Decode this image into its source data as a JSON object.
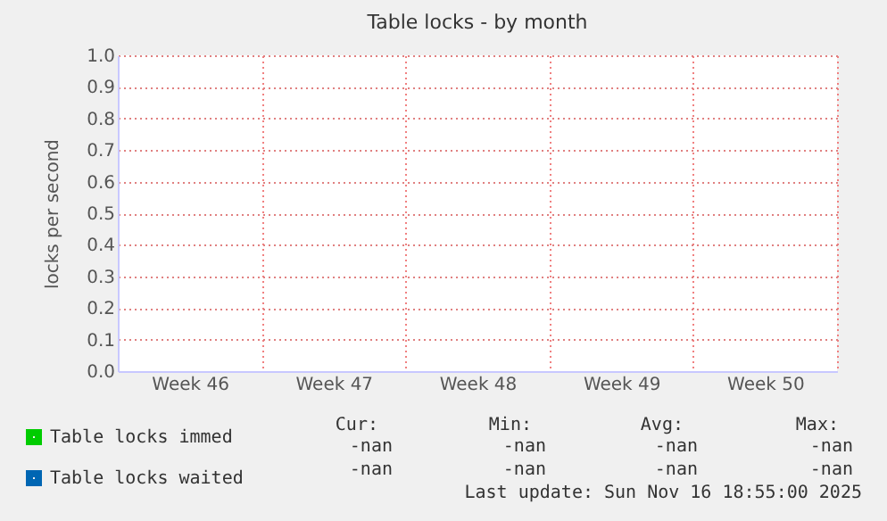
{
  "chart_data": {
    "type": "line",
    "title": "Table locks - by month",
    "ylabel": "locks per second",
    "categories": [
      "Week 46",
      "Week 47",
      "Week 48",
      "Week 49",
      "Week 50"
    ],
    "series": [
      {
        "name": "Table locks immed",
        "color": "#00cc00",
        "values": [
          null,
          null,
          null,
          null,
          null
        ]
      },
      {
        "name": "Table locks waited",
        "color": "#0066b3",
        "values": [
          null,
          null,
          null,
          null,
          null
        ]
      }
    ],
    "ylim": [
      0,
      1
    ],
    "yticks": [
      {
        "value": 0,
        "label": "0.0"
      },
      0.1,
      0.2,
      0.3,
      0.4,
      0.5,
      0.6,
      0.7,
      0.8,
      0.9,
      {
        "value": 1,
        "label": "1.0"
      }
    ],
    "grid": true,
    "legend": "bottom left",
    "annotations": [
      "Cur:",
      "Min:",
      "Avg:",
      "Max:",
      "-nan",
      "-nan",
      "-nan",
      "-nan",
      "-nan",
      "-nan",
      "-nan",
      "-nan",
      "Last update:  Sun Nov 16 18:55:00 2025"
    ]
  }
}
